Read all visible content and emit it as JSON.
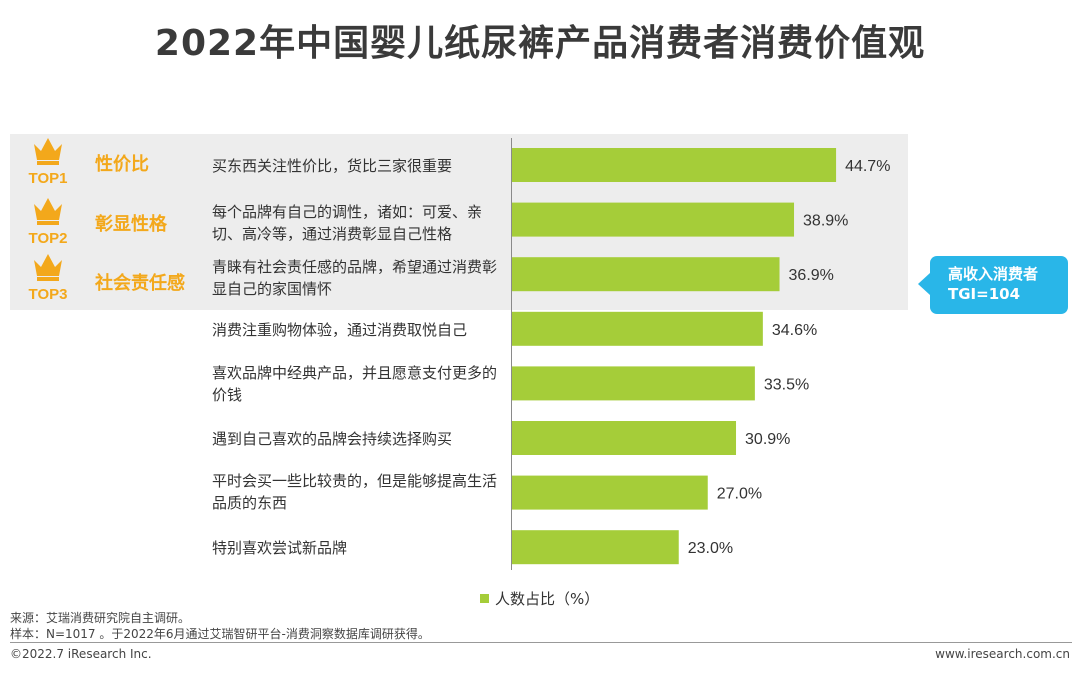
{
  "title": "2022年中国婴儿纸尿裤产品消费者消费价值观",
  "top3": [
    {
      "rank": "TOP1",
      "label": "性价比"
    },
    {
      "rank": "TOP2",
      "label": "彰显性格"
    },
    {
      "rank": "TOP3",
      "label": "社会责任感"
    }
  ],
  "callout": {
    "line1": "高收入消费者",
    "line2": "TGI=104"
  },
  "legend_label": "人数占比（%）",
  "footnotes": {
    "source": "来源：艾瑞消费研究院自主调研。",
    "sample": "样本：N=1017 。于2022年6月通过艾瑞智研平台-消费洞察数据库调研获得。"
  },
  "footer": {
    "copyright": "©2022.7 iResearch Inc.",
    "url": "www.iresearch.com.cn"
  },
  "colors": {
    "bar": "#a5cd39",
    "accent": "#f3a81b",
    "callout": "#29b6e8",
    "highlight": "#ededed"
  },
  "chart_data": {
    "type": "bar",
    "orientation": "horizontal",
    "categories": [
      "买东西关注性价比，货比三家很重要",
      "每个品牌有自己的调性，诸如：可爱、亲切、高冷等，通过消费彰显自己性格",
      "青睐有社会责任感的品牌，希望通过消费彰显自己的家国情怀",
      "消费注重购物体验，通过消费取悦自己",
      "喜欢品牌中经典产品，并且愿意支付更多的价钱",
      "遇到自己喜欢的品牌会持续选择购买",
      "平时会买一些比较贵的，但是能够提高生活品质的东西",
      "特别喜欢尝试新品牌"
    ],
    "values": [
      44.7,
      38.9,
      36.9,
      34.6,
      33.5,
      30.9,
      27.0,
      23.0
    ],
    "value_labels": [
      "44.7%",
      "38.9%",
      "36.9%",
      "34.6%",
      "33.5%",
      "30.9%",
      "27.0%",
      "23.0%"
    ],
    "series_name": "人数占比（%）",
    "xlim": [
      0,
      50
    ],
    "legend_position": "bottom"
  }
}
